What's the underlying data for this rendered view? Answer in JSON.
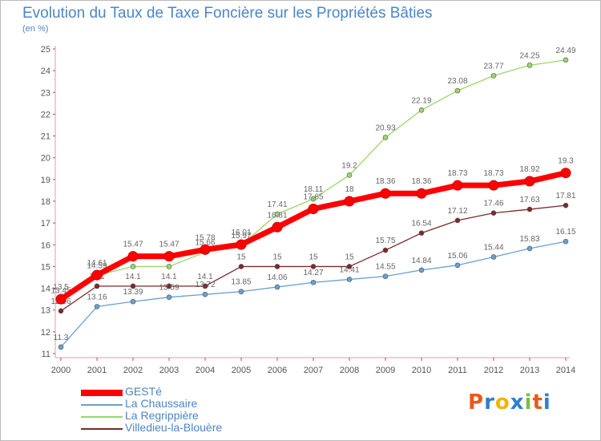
{
  "chart_data": {
    "type": "line",
    "title": "Evolution du Taux de Taxe Foncière sur les Propriétés Bâties",
    "subtitle": "(en %)",
    "xlabel": "",
    "ylabel": "",
    "categories": [
      "2000",
      "2001",
      "2002",
      "2003",
      "2004",
      "2005",
      "2006",
      "2007",
      "2008",
      "2009",
      "2010",
      "2011",
      "2012",
      "2013",
      "2014"
    ],
    "ylim": [
      11,
      25
    ],
    "yticks": [
      11,
      12,
      13,
      14,
      15,
      16,
      17,
      18,
      19,
      20,
      21,
      22,
      23,
      24,
      25
    ],
    "grid": false,
    "legend": "bottom-left",
    "series": [
      {
        "name": "Villedieu-la-Blouère",
        "color": "#7a2a2a",
        "width": 1.3,
        "r": 3,
        "values": [
          12.96,
          14.1,
          14.1,
          14.1,
          14.1,
          15,
          15,
          15,
          15,
          15.75,
          16.54,
          17.12,
          17.46,
          17.63,
          17.81
        ],
        "labels": [
          "12.96",
          "14.1",
          "14.1",
          "14.1",
          "14.1",
          "15",
          "15",
          "15",
          "15",
          "15.75",
          "16.54",
          "17.12",
          "17.46",
          "17.63",
          "17.81"
        ]
      },
      {
        "name": "La Chaussaire",
        "color": "#6a9fd0",
        "width": 1.3,
        "r": 3,
        "values": [
          11.3,
          13.16,
          13.39,
          13.59,
          13.72,
          13.85,
          14.06,
          14.27,
          14.41,
          14.55,
          14.84,
          15.06,
          15.44,
          15.83,
          16.15
        ],
        "labels": [
          "11.3",
          "13.16",
          "13.39",
          "13.59",
          "13.72",
          "13.85",
          "14.06",
          "14.27",
          "14.41",
          "14.55",
          "14.84",
          "15.06",
          "15.44",
          "15.83",
          "16.15"
        ]
      },
      {
        "name": "La Regrippière",
        "color": "#9ad66a",
        "width": 1.3,
        "r": 3,
        "values": [
          13.45,
          14.59,
          15,
          15,
          15.66,
          15.97,
          17.41,
          18.11,
          19.2,
          20.93,
          22.19,
          23.08,
          23.77,
          24.25,
          24.49
        ],
        "labels": [
          "13.45",
          "14.59",
          "15",
          "15",
          "15.66",
          "15.97",
          "17.41",
          "18.11",
          "19.2",
          "20.93",
          "22.19",
          "23.08",
          "23.77",
          "24.25",
          "24.49"
        ]
      },
      {
        "name": "GESTé",
        "color": "#ff0000",
        "width": 7,
        "r": 6,
        "values": [
          13.5,
          14.61,
          15.47,
          15.47,
          15.78,
          16.01,
          16.81,
          17.65,
          18,
          18.36,
          18.36,
          18.73,
          18.73,
          18.92,
          19.3
        ],
        "labels": [
          "13.5",
          "14.61",
          "15.47",
          "15.47",
          "15.78",
          "16.01",
          "16.81",
          "17.65",
          "18",
          "18.36",
          "18.36",
          "18.73",
          "18.73",
          "18.92",
          "19.3"
        ]
      }
    ]
  },
  "legend": {
    "items": [
      {
        "label": "GESTé",
        "color": "#ff0000"
      },
      {
        "label": "La Chaussaire",
        "color": "#6a9fd0"
      },
      {
        "label": "La Regrippière",
        "color": "#9ad66a"
      },
      {
        "label": "Villedieu-la-Blouère",
        "color": "#7a2a2a"
      }
    ]
  },
  "logo": {
    "text": "Proxiti"
  }
}
